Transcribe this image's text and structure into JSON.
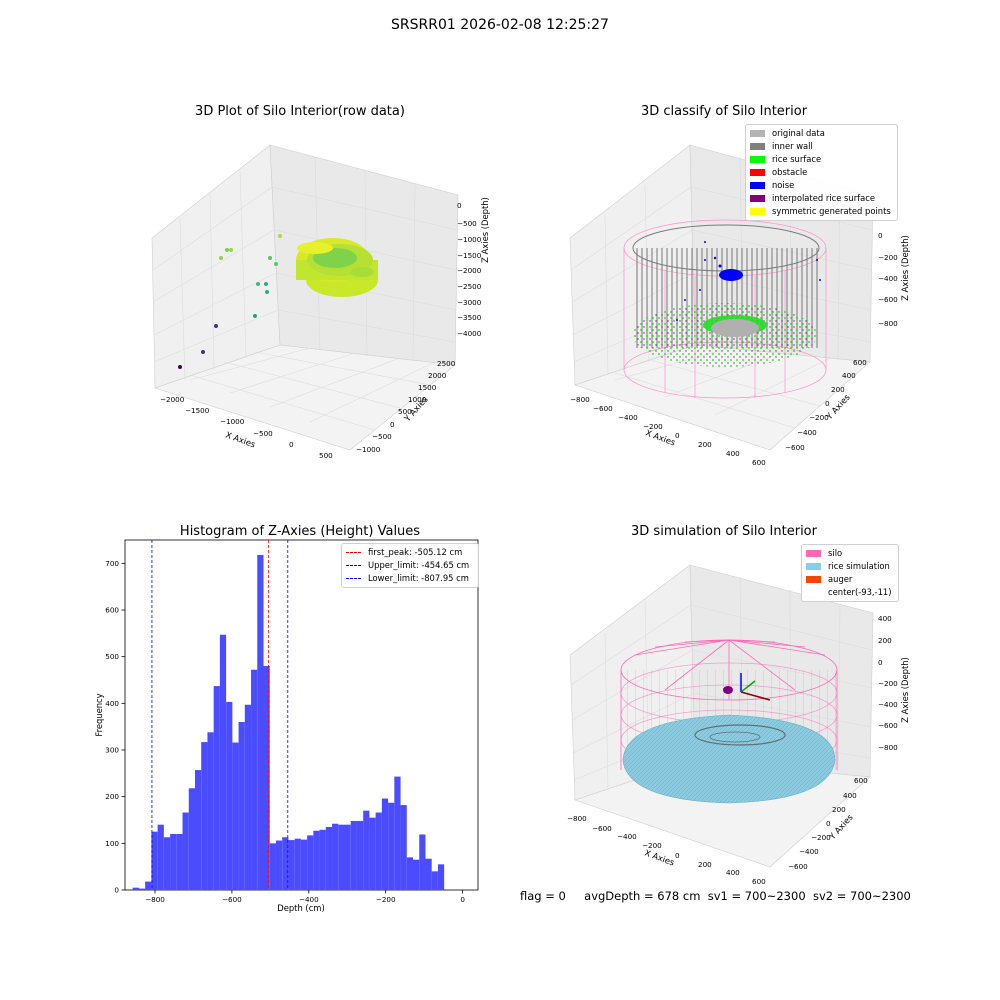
{
  "figure": {
    "suptitle": "SRSRR01 2026-02-08 12:25:27",
    "footer": {
      "flag": "flag = 0",
      "avg_depth": "avgDepth = 678 cm",
      "sv1": "sv1 = 700~2300",
      "sv2": "sv2 = 700~2300"
    }
  },
  "colors": {
    "hist_bar": "#4c4cff",
    "first_peak": "#ff0000",
    "limits": "#0000ff",
    "silo": "#ff69b4",
    "rice_simulation": "#87ceeb",
    "auger": "#ff4500",
    "original_data": "#b4b4b4",
    "inner_wall": "#808080",
    "rice_surface": "#00ff00",
    "obstacle": "#ff0000",
    "noise": "#0000ff",
    "interpolated_rice_surface": "#800080",
    "symmetric_generated_points": "#ffff00"
  },
  "panels": {
    "raw": {
      "title": "3D Plot of Silo Interior(row data)",
      "xlabel": "X Axies",
      "ylabel": "Y Axies",
      "zlabel": "Z Axies (Depth)",
      "xticks": [
        "−2000",
        "−1500",
        "−1000",
        "−500",
        "0",
        "500"
      ],
      "yticks": [
        "−1000",
        "−500",
        "0",
        "500",
        "1000",
        "1500",
        "2000",
        "2500"
      ],
      "zticks": [
        "0",
        "−500",
        "−1000",
        "−1500",
        "−2000",
        "−2500",
        "−3000",
        "−3500",
        "−4000"
      ]
    },
    "classify": {
      "title": "3D classify of Silo Interior",
      "xlabel": "X Axies",
      "ylabel": "Y Axies",
      "zlabel": "Z Axies (Depth)",
      "xticks": [
        "−800",
        "−600",
        "−400",
        "−200",
        "0",
        "200",
        "400",
        "600"
      ],
      "yticks": [
        "−600",
        "−400",
        "−200",
        "0",
        "200",
        "400",
        "600"
      ],
      "zticks": [
        "200",
        "0",
        "−200",
        "−400",
        "−600",
        "−800"
      ],
      "legend": [
        {
          "label": "original data",
          "color": "#b4b4b4"
        },
        {
          "label": "inner wall",
          "color": "#808080"
        },
        {
          "label": "rice surface",
          "color": "#00ff00"
        },
        {
          "label": "obstacle",
          "color": "#ff0000"
        },
        {
          "label": "noise",
          "color": "#0000ff"
        },
        {
          "label": "interpolated rice surface",
          "color": "#800080"
        },
        {
          "label": "symmetric generated points",
          "color": "#ffff00"
        }
      ]
    },
    "simulation": {
      "title": "3D simulation of Silo Interior",
      "xlabel": "X Axies",
      "ylabel": "Y Axies",
      "zlabel": "Z Axies (Depth)",
      "xticks": [
        "−800",
        "−600",
        "−400",
        "−200",
        "0",
        "200",
        "400",
        "600"
      ],
      "yticks": [
        "−600",
        "−400",
        "−200",
        "0",
        "200",
        "400",
        "600"
      ],
      "zticks": [
        "400",
        "200",
        "0",
        "−200",
        "−400",
        "−600",
        "−800"
      ],
      "legend": [
        {
          "label": "silo",
          "color": "#ff69b4"
        },
        {
          "label": "rice simulation",
          "color": "#87ceeb"
        },
        {
          "label": "auger",
          "color": "#ff4500"
        },
        {
          "label": "center(-93,-11)",
          "color": ""
        }
      ]
    }
  },
  "chart_data": {
    "type": "bar",
    "title": "Histogram of Z-Axies (Height) Values",
    "xlabel": "Depth (cm)",
    "ylabel": "Frequency",
    "xlim": [
      -878,
      40
    ],
    "ylim": [
      0,
      750
    ],
    "xticks": [
      -800,
      -600,
      -400,
      -200,
      0
    ],
    "xtick_labels": [
      "−800",
      "−600",
      "−400",
      "−200",
      "0"
    ],
    "yticks": [
      0,
      100,
      200,
      300,
      400,
      500,
      600,
      700
    ],
    "bin_width": 16.2,
    "bin_start": -858,
    "values": [
      5,
      3,
      18,
      125,
      140,
      113,
      120,
      120,
      166,
      218,
      257,
      317,
      338,
      437,
      547,
      403,
      316,
      360,
      397,
      472,
      718,
      480,
      100,
      106,
      113,
      107,
      110,
      108,
      117,
      127,
      129,
      135,
      142,
      140,
      140,
      148,
      148,
      170,
      155,
      166,
      196,
      187,
      243,
      182,
      70,
      65,
      119,
      67,
      40,
      55
    ],
    "lines": [
      {
        "name": "first_peak: -505.12 cm",
        "x": -505.12,
        "color": "#ff0000"
      },
      {
        "name": "Upper_limit: -454.65 cm",
        "x": -454.65,
        "color": "#0000ff"
      },
      {
        "name": "Lower_limit: -807.95 cm",
        "x": -807.95,
        "color": "#0000ff"
      }
    ]
  }
}
